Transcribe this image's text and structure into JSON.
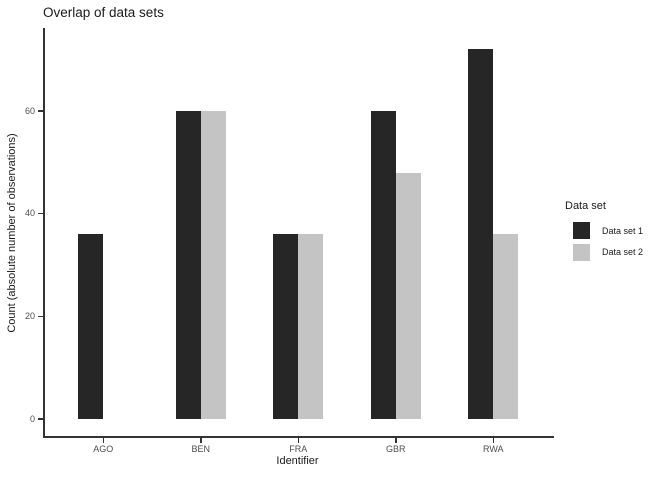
{
  "chart_data": {
    "type": "bar",
    "title": "Overlap of data sets",
    "xlabel": "Identifier",
    "ylabel": "Count (absolute number of observations)",
    "categories": [
      "AGO",
      "BEN",
      "FRA",
      "GBR",
      "RWA"
    ],
    "series": [
      {
        "name": "Data set 1",
        "color": "#262626",
        "values": [
          36,
          60,
          36,
          60,
          72
        ]
      },
      {
        "name": "Data set 2",
        "color": "#c4c4c4",
        "values": [
          null,
          60,
          36,
          48,
          36
        ]
      }
    ],
    "y_ticks": [
      0,
      20,
      40,
      60
    ],
    "ylim": [
      0,
      75
    ],
    "grid": false,
    "legend_title": "Data set",
    "legend_position": "right",
    "bar_layout": "dodged",
    "axis_color": "#333333",
    "tick_label_color": "#4d4d4d"
  }
}
